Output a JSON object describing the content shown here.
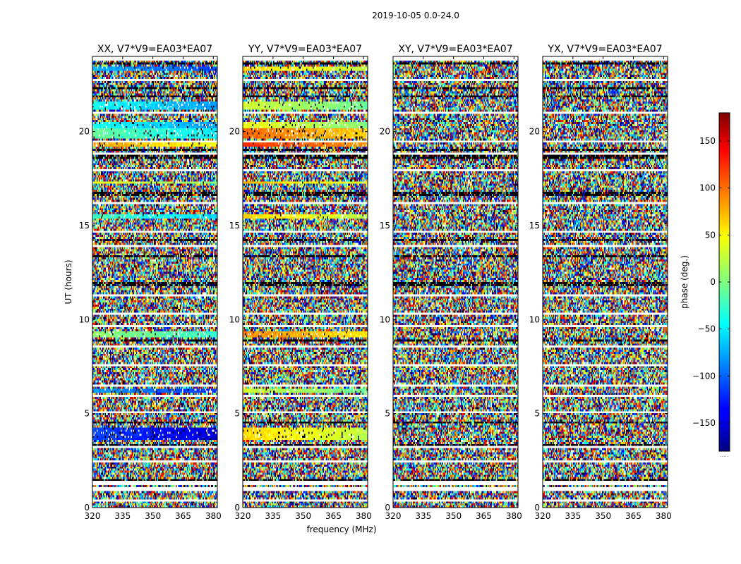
{
  "chart_data": {
    "type": "heatmap",
    "suptitle": "2019-10-05 0.0-24.0",
    "xlabel": "frequency (MHz)",
    "ylabel": "UT (hours)",
    "xlim": [
      320,
      382
    ],
    "ylim": [
      0,
      24
    ],
    "x_ticks": [
      "320",
      "335",
      "350",
      "365",
      "380"
    ],
    "x_tick_values": [
      320,
      335,
      350,
      365,
      380
    ],
    "y_ticks": [
      "0",
      "5",
      "10",
      "15",
      "20"
    ],
    "y_tick_values": [
      0,
      5,
      10,
      15,
      20
    ],
    "colorbar": {
      "label": "phase (deg.)",
      "vmin": -180,
      "vmax": 180,
      "colormap": "jet",
      "ticks": [
        "150",
        "100",
        "50",
        "0",
        "−50",
        "−100",
        "−150"
      ],
      "tick_values": [
        150,
        100,
        50,
        0,
        -50,
        -100,
        -150
      ],
      "footer": "....."
    },
    "panels": [
      {
        "title": "XX, V7*V9=EA03*EA07",
        "coherent_bands": [
          [
            3.6,
            4.3,
            -110
          ],
          [
            6.1,
            6.3,
            -80
          ],
          [
            9.1,
            9.4,
            10
          ],
          [
            15.4,
            15.6,
            -20
          ],
          [
            17.2,
            17.4,
            40
          ],
          [
            19.2,
            19.4,
            80
          ],
          [
            19.6,
            20.2,
            -10
          ],
          [
            20.2,
            20.5,
            -40
          ],
          [
            21.2,
            21.6,
            -40
          ],
          [
            23.2,
            23.5,
            -70
          ]
        ]
      },
      {
        "title": "YY, V7*V9=EA03*EA07",
        "coherent_bands": [
          [
            3.6,
            4.3,
            60
          ],
          [
            6.1,
            6.3,
            30
          ],
          [
            9.1,
            9.4,
            90
          ],
          [
            15.4,
            15.6,
            60
          ],
          [
            17.2,
            17.4,
            70
          ],
          [
            19.2,
            19.4,
            120
          ],
          [
            19.6,
            20.2,
            100
          ],
          [
            20.2,
            20.5,
            40
          ],
          [
            21.2,
            21.6,
            30
          ],
          [
            23.2,
            23.5,
            60
          ]
        ]
      },
      {
        "title": "XY, V7*V9=EA03*EA07",
        "coherent_bands": []
      },
      {
        "title": "YX, V7*V9=EA03*EA07",
        "coherent_bands": []
      }
    ],
    "blank_bands": [
      [
        0.35,
        0.45
      ],
      [
        0.9,
        1.05
      ],
      [
        1.25,
        1.4
      ],
      [
        2.45,
        2.55
      ],
      [
        3.15,
        3.25
      ],
      [
        5.0,
        5.08
      ],
      [
        5.9,
        6.05
      ],
      [
        6.4,
        6.5
      ],
      [
        7.5,
        7.6
      ],
      [
        8.5,
        8.6
      ],
      [
        9.6,
        9.7
      ],
      [
        10.3,
        10.4
      ],
      [
        11.2,
        11.3
      ],
      [
        12.5,
        12.6
      ],
      [
        13.85,
        13.95
      ],
      [
        14.6,
        14.7
      ],
      [
        16.2,
        16.3
      ],
      [
        17.9,
        18.0
      ],
      [
        18.8,
        18.9
      ],
      [
        19.45,
        19.55
      ],
      [
        21.0,
        21.08
      ],
      [
        22.7,
        22.8
      ],
      [
        23.8,
        24.0
      ]
    ],
    "flagged_bands": [
      [
        0.5,
        0.6
      ],
      [
        1.45,
        1.55
      ],
      [
        3.3,
        3.4
      ],
      [
        4.5,
        4.6
      ],
      [
        8.8,
        8.9
      ],
      [
        11.8,
        11.95
      ],
      [
        13.3,
        13.4
      ],
      [
        14.2,
        14.3
      ],
      [
        16.6,
        16.75
      ],
      [
        18.6,
        18.75
      ],
      [
        19.0,
        19.1
      ],
      [
        21.8,
        21.95
      ],
      [
        22.3,
        22.4
      ],
      [
        23.6,
        23.7
      ]
    ]
  }
}
